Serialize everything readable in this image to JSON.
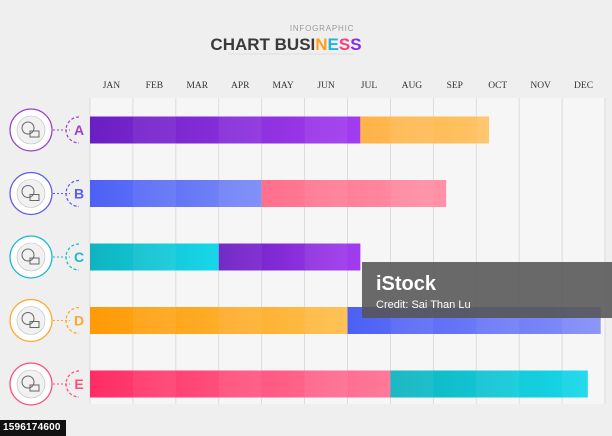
{
  "header": {
    "kicker": "INFOGRAPHIC",
    "title_parts": [
      {
        "text": "CHART BUSI",
        "color": "#3a3a3a"
      },
      {
        "text": "N",
        "color": "#ff9f1a"
      },
      {
        "text": "E",
        "color": "#1fb6d9"
      },
      {
        "text": "S",
        "color": "#ff3d7a"
      },
      {
        "text": "S",
        "color": "#8a2be2"
      }
    ]
  },
  "watermark": {
    "line1": "iStock",
    "line2": "Credit: Sai Than Lu"
  },
  "footer": {
    "id": "1596174600"
  },
  "chart_data": {
    "type": "bar",
    "orientation": "horizontal-stacked",
    "months": [
      "JAN",
      "FEB",
      "MAR",
      "APR",
      "MAY",
      "JUN",
      "JUL",
      "AUG",
      "SEP",
      "OCT",
      "NOV",
      "DEC"
    ],
    "grid": true,
    "rows": [
      {
        "label": "A",
        "color": "#9b42c8",
        "icon": "globe-house-icon",
        "segments": [
          {
            "start": 0,
            "end": 6.3,
            "from": "#6a1fc2",
            "to": "#a33cf0"
          },
          {
            "start": 6.3,
            "end": 9.3,
            "from": "#ffb347",
            "to": "#ffc466"
          }
        ]
      },
      {
        "label": "B",
        "color": "#5a5cf0",
        "icon": "idea-head-icon",
        "segments": [
          {
            "start": 0,
            "end": 4.0,
            "from": "#4c60f5",
            "to": "#7b8bf7"
          },
          {
            "start": 4.0,
            "end": 8.3,
            "from": "#ff6f8c",
            "to": "#ff92a8"
          }
        ]
      },
      {
        "label": "C",
        "color": "#1db7cf",
        "icon": "heart-hands-icon",
        "segments": [
          {
            "start": 0,
            "end": 3.0,
            "from": "#0fb3c0",
            "to": "#16d8ea"
          },
          {
            "start": 3.0,
            "end": 6.3,
            "from": "#6a1fc2",
            "to": "#a33cf0"
          }
        ]
      },
      {
        "label": "D",
        "color": "#ffa62b",
        "icon": "presentation-icon",
        "segments": [
          {
            "start": 0,
            "end": 6.0,
            "from": "#ff9a05",
            "to": "#ffbf4d"
          },
          {
            "start": 6.0,
            "end": 11.9,
            "from": "#4c60f5",
            "to": "#8590f7"
          }
        ]
      },
      {
        "label": "E",
        "color": "#ff4d7a",
        "icon": "laptop-chat-icon",
        "segments": [
          {
            "start": 0,
            "end": 7.0,
            "from": "#ff2d63",
            "to": "#ff7a98"
          },
          {
            "start": 7.0,
            "end": 11.6,
            "from": "#0fb3c0",
            "to": "#16d8ea"
          }
        ]
      }
    ]
  }
}
